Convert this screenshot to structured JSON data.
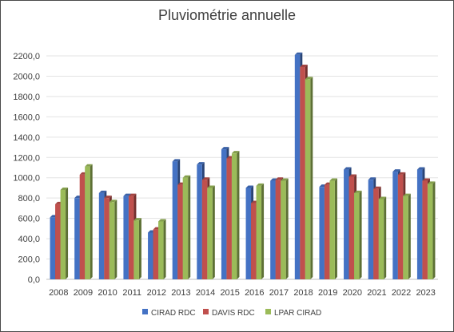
{
  "chart_data": {
    "type": "bar",
    "title": "Pluviométrie annuelle",
    "xlabel": "",
    "ylabel": "",
    "categories": [
      "2008",
      "2009",
      "2010",
      "2011",
      "2012",
      "2013",
      "2014",
      "2015",
      "2016",
      "2017",
      "2018",
      "2019",
      "2020",
      "2021",
      "2022",
      "2023"
    ],
    "series": [
      {
        "name": "CIRAD RDC",
        "color": "#4472c4",
        "values": [
          610,
          800,
          850,
          820,
          460,
          1160,
          1130,
          1280,
          900,
          970,
          2210,
          910,
          1080,
          980,
          1060,
          1080
        ]
      },
      {
        "name": "DAVIS RDC",
        "color": "#c0504d",
        "values": [
          740,
          1030,
          800,
          820,
          490,
          930,
          980,
          1190,
          750,
          980,
          2090,
          930,
          1010,
          890,
          1030,
          970
        ]
      },
      {
        "name": "LPAR CIRAD",
        "color": "#9bbb59",
        "values": [
          880,
          1110,
          760,
          580,
          570,
          1000,
          900,
          1240,
          920,
          970,
          1970,
          970,
          850,
          790,
          820,
          940
        ]
      }
    ],
    "ylim": [
      0,
      2200
    ],
    "yticks": [
      "0,0",
      "200,0",
      "400,0",
      "600,0",
      "800,0",
      "1000,0",
      "1200,0",
      "1400,0",
      "1600,0",
      "1800,0",
      "2000,0",
      "2200,0"
    ],
    "grid": true,
    "legend_position": "bottom"
  }
}
